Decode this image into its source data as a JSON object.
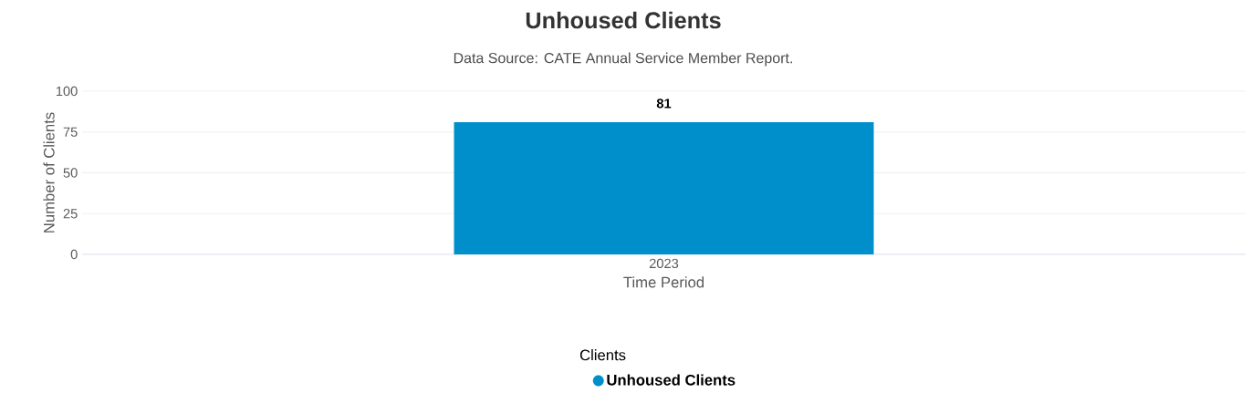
{
  "chart_data": {
    "type": "bar",
    "title": "Unhoused Clients",
    "subtitle": "Data Source: CATE Annual Service Member Report.",
    "xlabel": "Time Period",
    "ylabel": "Number of Clients",
    "legend_title": "Clients",
    "categories": [
      "2023"
    ],
    "series": [
      {
        "name": "Unhoused Clients",
        "color": "#008fcb",
        "values": [
          81
        ]
      }
    ],
    "ylim": [
      0,
      100
    ],
    "yticks": [
      0,
      25,
      50,
      75,
      100
    ],
    "grid": "y",
    "legend": "bottom",
    "data_labels": true
  }
}
